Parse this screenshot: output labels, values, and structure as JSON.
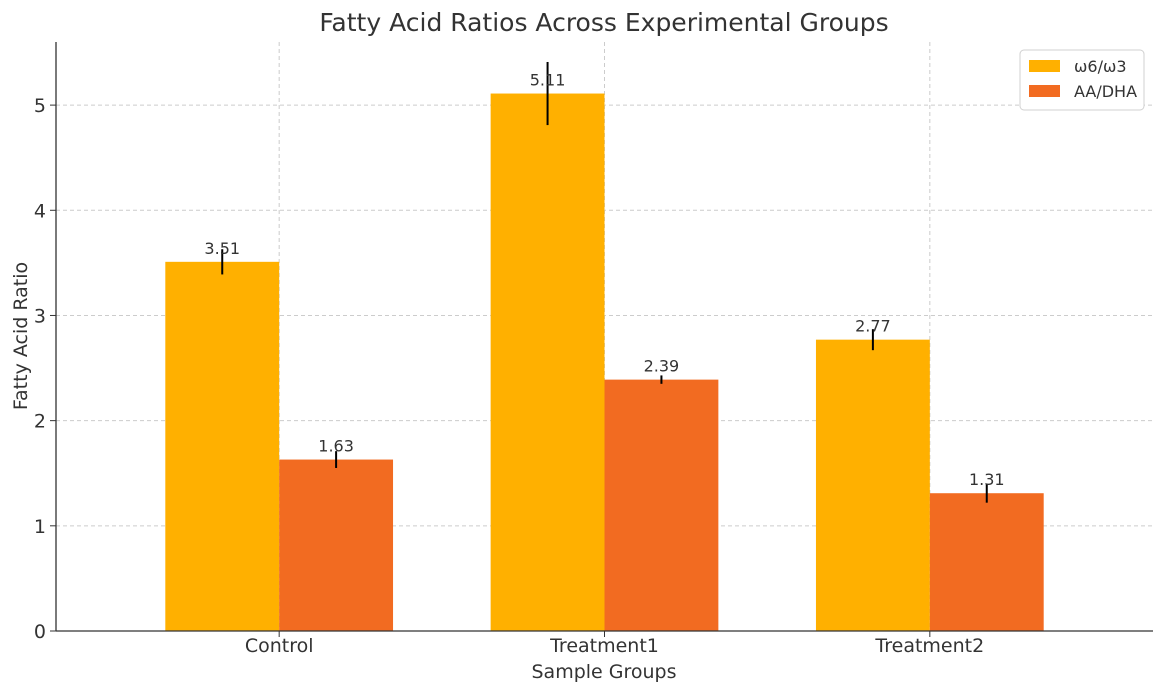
{
  "chart_data": {
    "type": "bar",
    "title": "Fatty Acid Ratios Across Experimental Groups",
    "xlabel": "Sample Groups",
    "ylabel": "Fatty Acid Ratio",
    "categories": [
      "Control",
      "Treatment1",
      "Treatment2"
    ],
    "ylim": [
      0,
      5.6
    ],
    "yticks": [
      0,
      1,
      2,
      3,
      4,
      5
    ],
    "grid": true,
    "legend_position": "top-right",
    "series": [
      {
        "name": "ω6/ω3",
        "color": "#FFB000",
        "values": [
          3.51,
          5.11,
          2.77
        ],
        "errors": [
          0.12,
          0.3,
          0.1
        ],
        "labels": [
          "3.51",
          "5.11",
          "2.77"
        ]
      },
      {
        "name": "AA/DHA",
        "color": "#F26B21",
        "values": [
          1.63,
          2.39,
          1.31
        ],
        "errors": [
          0.08,
          0.04,
          0.09
        ],
        "labels": [
          "1.63",
          "2.39",
          "1.31"
        ]
      }
    ]
  }
}
